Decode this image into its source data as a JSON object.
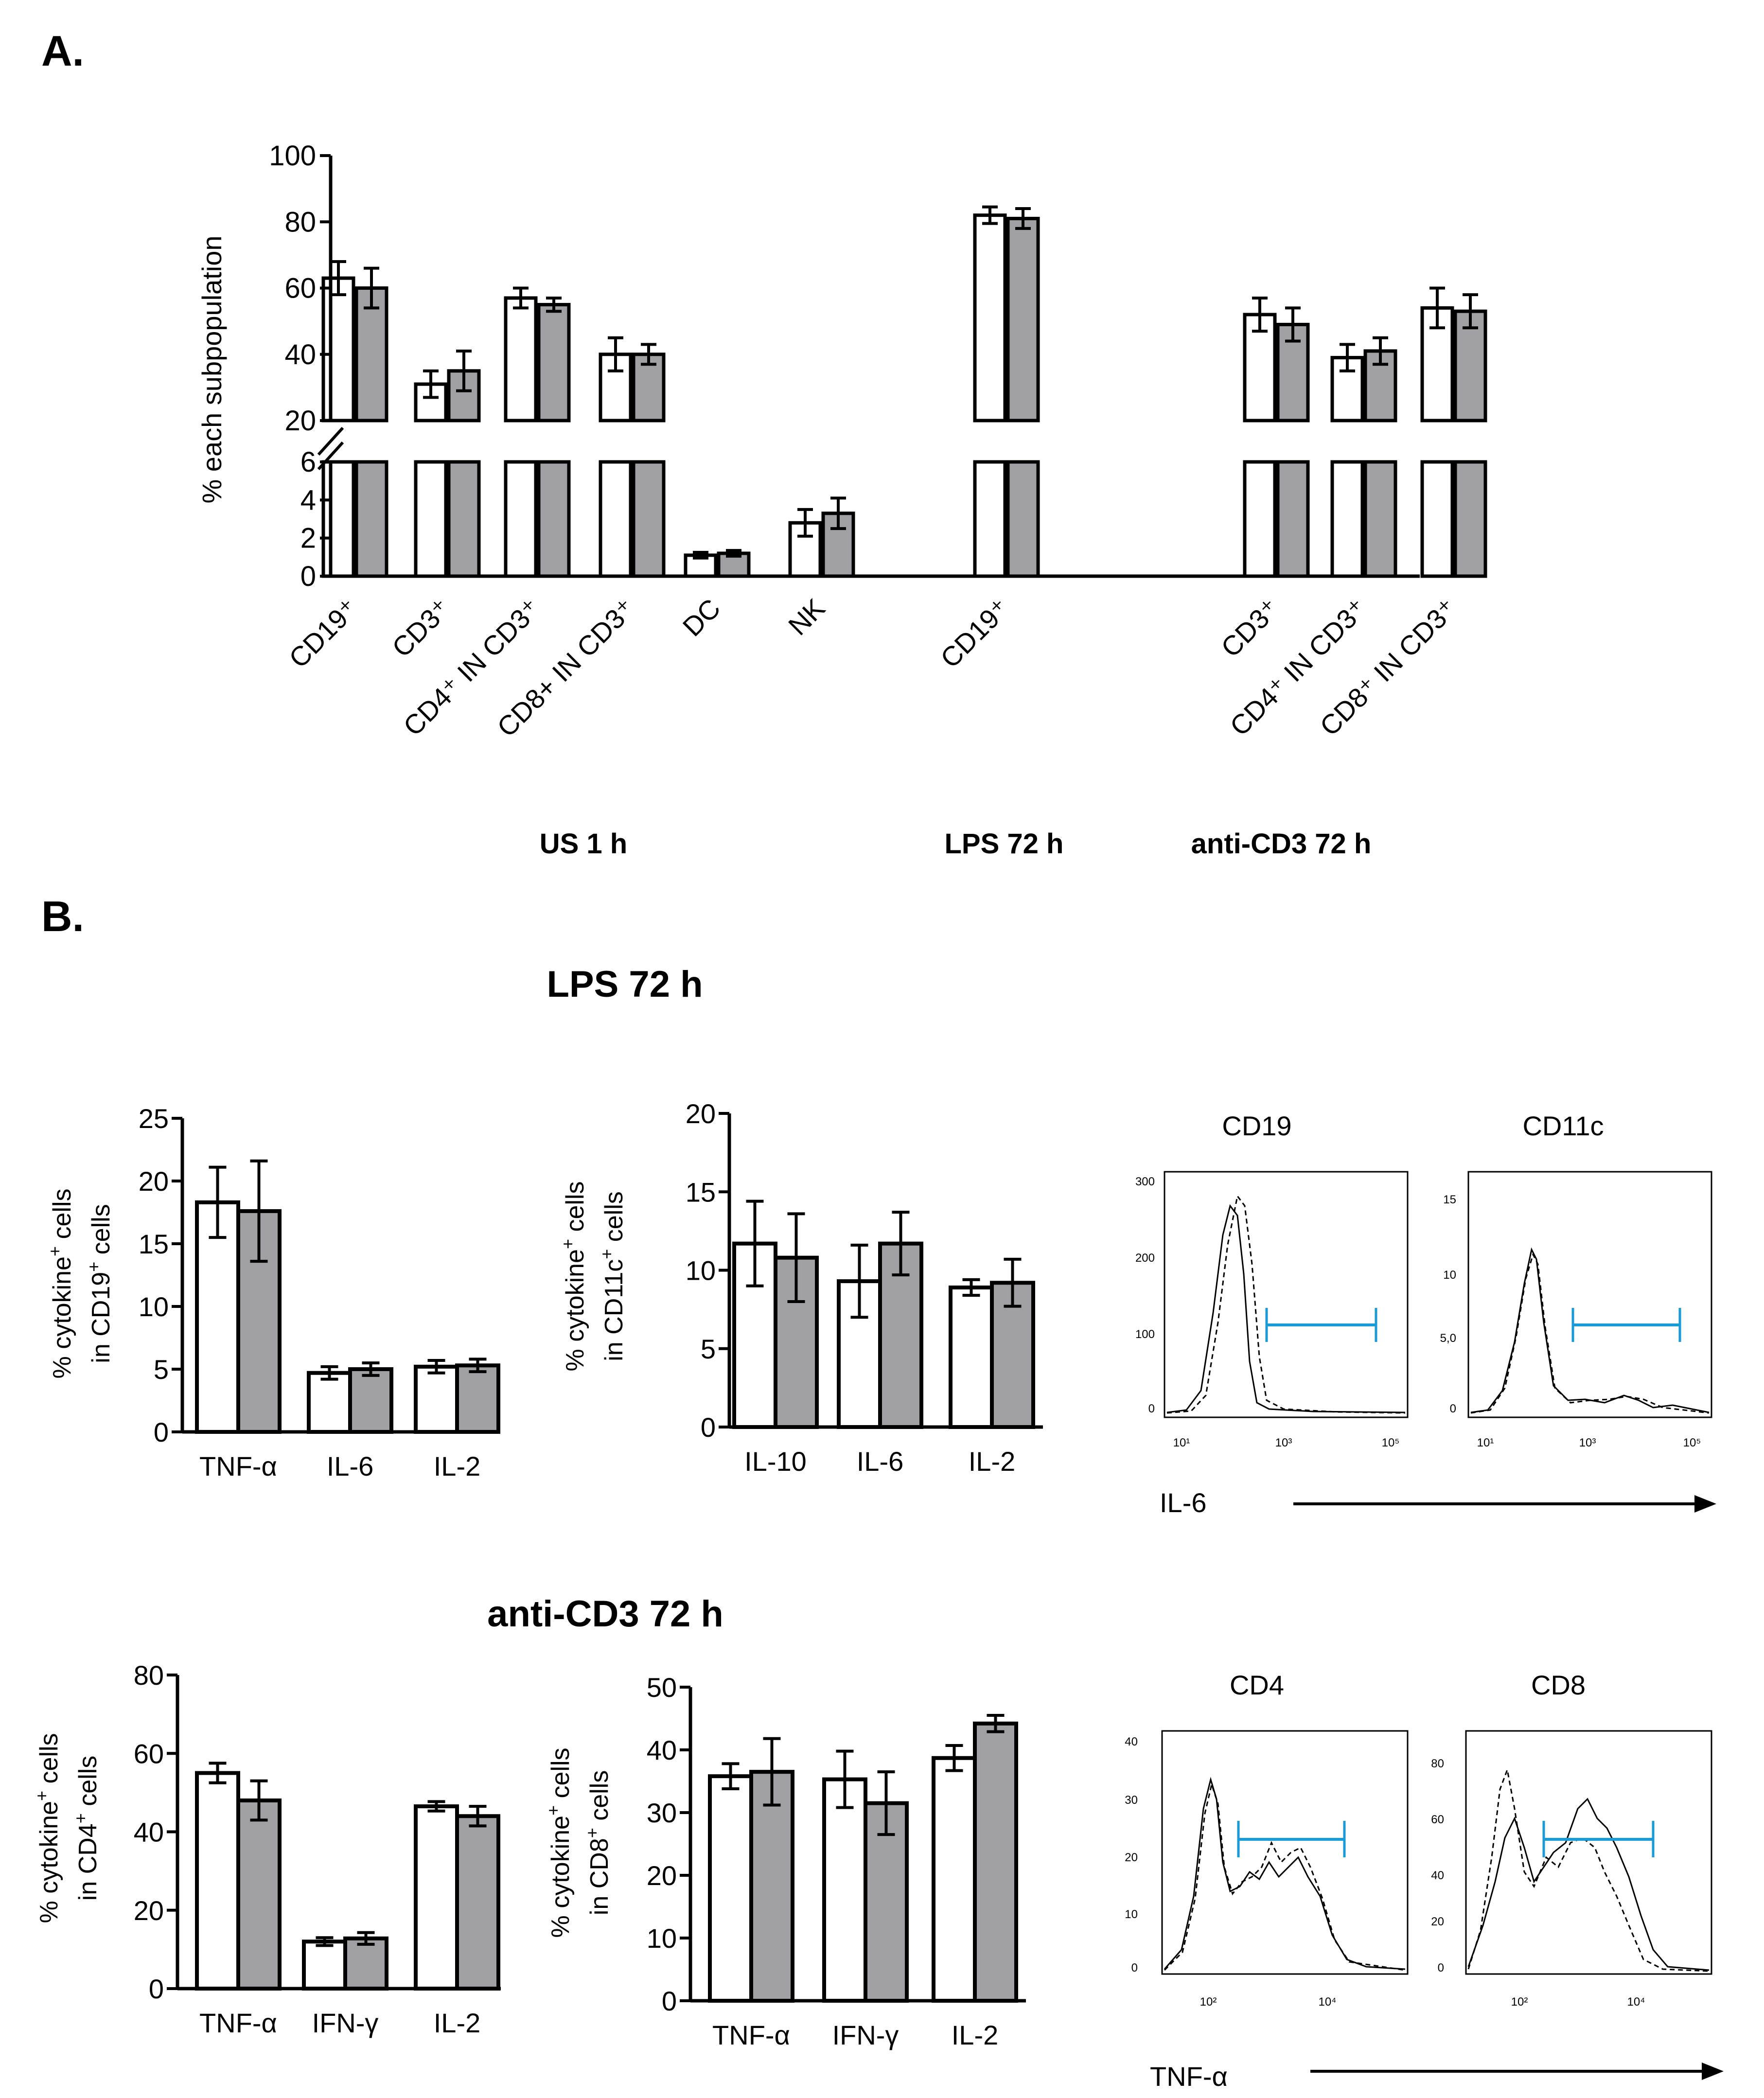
{
  "colors": {
    "white_bar": "#ffffff",
    "gray_bar": "#a0a0a4",
    "gate": "#1a9ad6",
    "stroke": "#000000"
  },
  "panel_a": {
    "panel_label": "A.",
    "ylabel": "% each subpopulation",
    "upper_ticks": [
      20,
      40,
      60,
      80,
      100
    ],
    "lower_ticks": [
      0,
      2,
      4,
      6
    ],
    "group_labels": [
      "US 1 h",
      "LPS 72 h",
      "anti-CD3 72 h"
    ]
  },
  "panel_b": {
    "panel_label": "B.",
    "lps_title": "LPS 72 h",
    "anti_title": "anti-CD3  72 h",
    "flow_labels": {
      "cd19": "CD19",
      "cd11c": "CD11c",
      "cd4": "CD4",
      "cd8": "CD8",
      "x_il6": "IL-6",
      "x_tnf": "TNF-α"
    },
    "flow_ticks": {
      "cd19_y": [
        "300",
        "200",
        "100",
        "0"
      ],
      "cd11c_y": [
        "15",
        "10",
        "5,0",
        "0"
      ],
      "cd4_y": [
        "40",
        "30",
        "20",
        "10",
        "0"
      ],
      "cd8_y": [
        "80",
        "60",
        "40",
        "20",
        "0"
      ],
      "x_lps": [
        "10¹",
        "10³",
        "10⁵"
      ],
      "x_anti": [
        "10²",
        "10⁴"
      ]
    }
  },
  "chart_data": [
    {
      "id": "A",
      "type": "bar",
      "title": "",
      "ylabel": "% each subpopulation",
      "axis_break": {
        "lower": [
          0,
          6
        ],
        "upper": [
          20,
          100
        ]
      },
      "categories": [
        "CD19⁺",
        "CD3⁺",
        "CD4⁺ IN CD3⁺",
        "CD8+ IN CD3⁺",
        "DC",
        "NK",
        "CD19⁺",
        "CD3⁺",
        "CD4⁺ IN CD3⁺",
        "CD8⁺ IN CD3⁺"
      ],
      "groups": [
        {
          "label": "US 1 h",
          "categories": [
            0,
            1,
            2,
            3,
            4,
            5
          ]
        },
        {
          "label": "LPS 72 h",
          "categories": [
            6
          ]
        },
        {
          "label": "anti-CD3 72 h",
          "categories": [
            7,
            8,
            9
          ]
        }
      ],
      "series": [
        {
          "name": "white",
          "values": [
            63,
            31,
            57,
            40,
            1.1,
            2.8,
            82,
            52,
            39,
            54
          ],
          "errors": [
            5,
            4,
            3,
            5,
            0.15,
            0.7,
            2.5,
            5,
            4,
            6
          ]
        },
        {
          "name": "gray",
          "values": [
            60,
            35,
            55,
            40,
            1.2,
            3.3,
            81,
            49,
            41,
            53
          ],
          "errors": [
            6,
            6,
            2,
            3,
            0.15,
            0.8,
            3,
            5,
            4,
            5
          ]
        }
      ]
    },
    {
      "id": "B-LPS-CD19",
      "type": "bar",
      "ylabel": "% cytokine⁺ cells in CD19⁺ cells",
      "ylim": [
        0,
        25
      ],
      "yticks": [
        0,
        5,
        10,
        15,
        20,
        25
      ],
      "categories": [
        "TNF-α",
        "IL-6",
        "IL-2"
      ],
      "series": [
        {
          "name": "white",
          "values": [
            18.3,
            4.7,
            5.2
          ],
          "errors": [
            2.8,
            0.5,
            0.5
          ]
        },
        {
          "name": "gray",
          "values": [
            17.6,
            5.0,
            5.3
          ],
          "errors": [
            4.0,
            0.5,
            0.5
          ]
        }
      ]
    },
    {
      "id": "B-LPS-CD11c",
      "type": "bar",
      "ylabel": "% cytokine⁺ cells in CD11c⁺ cells",
      "ylim": [
        0,
        20
      ],
      "yticks": [
        0,
        5,
        10,
        15,
        20
      ],
      "categories": [
        "IL-10",
        "IL-6",
        "IL-2"
      ],
      "series": [
        {
          "name": "white",
          "values": [
            11.7,
            9.3,
            8.9
          ],
          "errors": [
            2.7,
            2.3,
            0.5
          ]
        },
        {
          "name": "gray",
          "values": [
            10.8,
            11.7,
            9.2
          ],
          "errors": [
            2.8,
            2.0,
            1.5
          ]
        }
      ]
    },
    {
      "id": "B-anti-CD4",
      "type": "bar",
      "ylabel": "% cytokine⁺ cells in CD4⁺ cells",
      "ylim": [
        0,
        80
      ],
      "yticks": [
        0,
        20,
        40,
        60,
        80
      ],
      "categories": [
        "TNF-α",
        "IFN-γ",
        "IL-2"
      ],
      "series": [
        {
          "name": "white",
          "values": [
            55,
            12,
            46.5
          ],
          "errors": [
            2.5,
            1,
            1.2
          ]
        },
        {
          "name": "gray",
          "values": [
            48,
            12.8,
            44
          ],
          "errors": [
            5,
            1.5,
            2.5
          ]
        }
      ]
    },
    {
      "id": "B-anti-CD8",
      "type": "bar",
      "ylabel": "% cytokine⁺ cells in CD8⁺ cells",
      "ylim": [
        0,
        50
      ],
      "yticks": [
        0,
        10,
        20,
        30,
        40,
        50
      ],
      "categories": [
        "TNF-α",
        "IFN-γ",
        "IL-2"
      ],
      "series": [
        {
          "name": "white",
          "values": [
            35.8,
            35.3,
            38.7
          ],
          "errors": [
            2,
            4.5,
            2
          ]
        },
        {
          "name": "gray",
          "values": [
            36.5,
            31.5,
            44.2
          ],
          "errors": [
            5.3,
            5,
            1.3
          ]
        }
      ]
    }
  ]
}
